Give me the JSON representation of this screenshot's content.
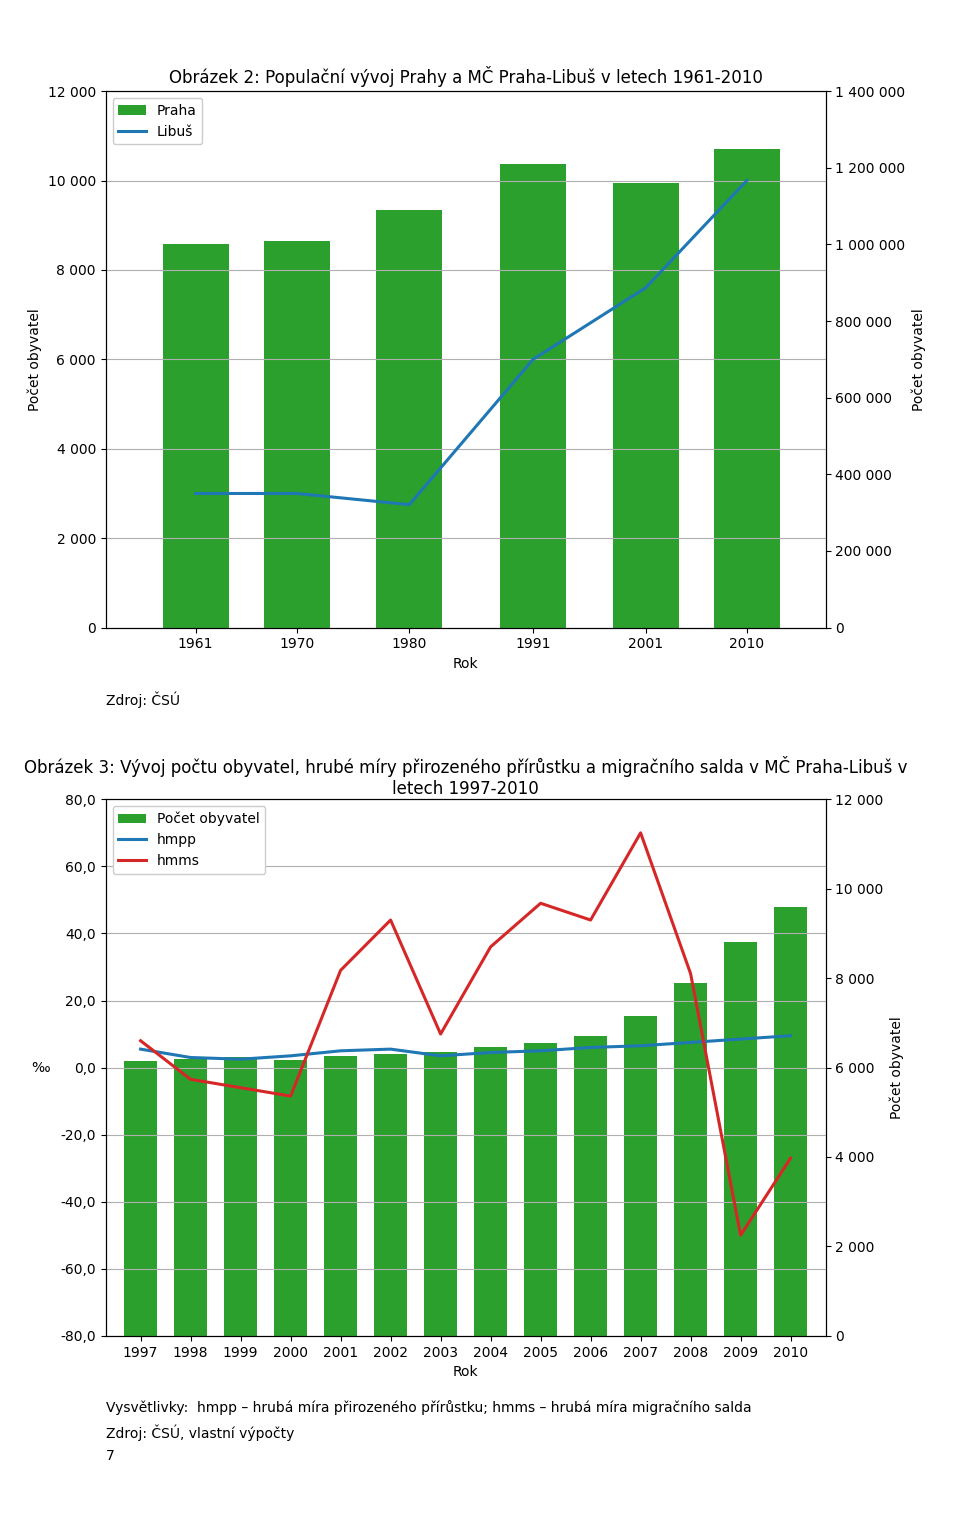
{
  "chart_data": [
    {
      "type": "bar",
      "title": "Obrázek 2: Populační vývoj Prahy a MČ Praha-Libuš v letech 1961-2010",
      "x_label": "Rok",
      "y_label": "Počet obyvatel",
      "y2_label": "Počet obyvatel",
      "x": [
        1961,
        1970,
        1980,
        1991,
        2001,
        2010
      ],
      "xlim": [
        1953,
        2017
      ],
      "xticks": [
        1961,
        1970,
        1980,
        1991,
        2001,
        2010
      ],
      "ylim": [
        0,
        12000
      ],
      "yticks": [
        0,
        {
          "value": 2000,
          "label": "2 000"
        },
        {
          "value": 4000,
          "label": "4 000"
        },
        {
          "value": 6000,
          "label": "6 000"
        },
        {
          "value": 8000,
          "label": "8 000"
        },
        {
          "value": 10000,
          "label": "10 000"
        },
        {
          "value": 12000,
          "label": "12 000"
        }
      ],
      "y2lim": [
        0,
        1400000
      ],
      "y2ticks": [
        0,
        {
          "value": 200000,
          "label": "200 000"
        },
        {
          "value": 400000,
          "label": "400 000"
        },
        {
          "value": 600000,
          "label": "600 000"
        },
        {
          "value": 800000,
          "label": "800 000"
        },
        {
          "value": 1000000,
          "label": "1 000 000"
        },
        {
          "value": 1200000,
          "label": "1 200 000"
        },
        {
          "value": 1400000,
          "label": "1 400 000"
        }
      ],
      "series": [
        {
          "name": "Praha",
          "type": "bar",
          "axis": "y2",
          "color": "#2ca02c",
          "values": [
            1000000,
            1010000,
            1090000,
            1210000,
            1160000,
            1250000
          ]
        },
        {
          "name": "Libuš",
          "type": "line",
          "color": "#1f77b4",
          "values": [
            3000,
            3000,
            2750,
            6000,
            7600,
            10000
          ]
        }
      ],
      "grid": true,
      "legend": "upper left",
      "annotations": [
        "Zdroj: ČSÚ"
      ]
    },
    {
      "type": "bar",
      "title": "Obrázek 3: Vývoj počtu obyvatel, hrubé míry přirozeného přírůstku a migračního salda v MČ Praha-Libuš v letech 1997-2010",
      "x_label": "Rok",
      "y_label": "‰",
      "y2_label": "Počet obyvatel",
      "x": [
        1997,
        1998,
        1999,
        2000,
        2001,
        2002,
        2003,
        2004,
        2005,
        2006,
        2007,
        2008,
        2009,
        2010
      ],
      "xlim": [
        1996.3,
        2010.7
      ],
      "xticks": [
        1997,
        1998,
        1999,
        2000,
        2001,
        2002,
        2003,
        2004,
        2005,
        2006,
        2007,
        2008,
        2009,
        2010
      ],
      "ylim": [
        -80,
        80
      ],
      "yticks": [
        {
          "value": -80.0,
          "label": "-80,0"
        },
        {
          "value": -60.0,
          "label": "-60,0"
        },
        {
          "value": -40.0,
          "label": "-40,0"
        },
        {
          "value": -20.0,
          "label": "-20,0"
        },
        {
          "value": 0.0,
          "label": "0,0"
        },
        {
          "value": 20.0,
          "label": "20,0"
        },
        {
          "value": 40.0,
          "label": "40,0"
        },
        {
          "value": 60.0,
          "label": "60,0"
        },
        {
          "value": 80.0,
          "label": "80,0"
        }
      ],
      "y2lim": [
        0,
        12000
      ],
      "y2ticks": [
        0,
        {
          "value": 2000,
          "label": "2 000"
        },
        {
          "value": 4000,
          "label": "4 000"
        },
        {
          "value": 6000,
          "label": "6 000"
        },
        {
          "value": 8000,
          "label": "8 000"
        },
        {
          "value": 10000,
          "label": "10 000"
        },
        {
          "value": 12000,
          "label": "12 000"
        }
      ],
      "series": [
        {
          "name": "Počet obyvatel",
          "type": "bar",
          "axis": "y2",
          "color": "#2ca02c",
          "values": [
            6150,
            6200,
            6230,
            6180,
            6250,
            6300,
            6350,
            6450,
            6550,
            6700,
            7150,
            7900,
            8800,
            9600
          ]
        },
        {
          "name": "hmpp",
          "type": "line",
          "color": "#1f77b4",
          "values": [
            5.5,
            3.0,
            2.5,
            3.5,
            5.0,
            5.5,
            3.5,
            4.5,
            5.0,
            6.0,
            6.5,
            7.5,
            8.5,
            9.5
          ]
        },
        {
          "name": "hmms",
          "type": "line",
          "color": "#d62728",
          "values": [
            8.0,
            -3.5,
            -6.0,
            -8.5,
            29.0,
            44.0,
            10.0,
            36.0,
            49.0,
            44.0,
            70.0,
            28.0,
            -50.0,
            -27.0
          ]
        }
      ],
      "grid": true,
      "legend": "upper left",
      "annotations": [
        "Vysvětlivky:  hmpp – hrubá míra přirozeného přírůstku; hmms – hrubá míra migračního salda",
        "Zdroj: ČSÚ, vlastní výpočty",
        "7"
      ]
    }
  ]
}
